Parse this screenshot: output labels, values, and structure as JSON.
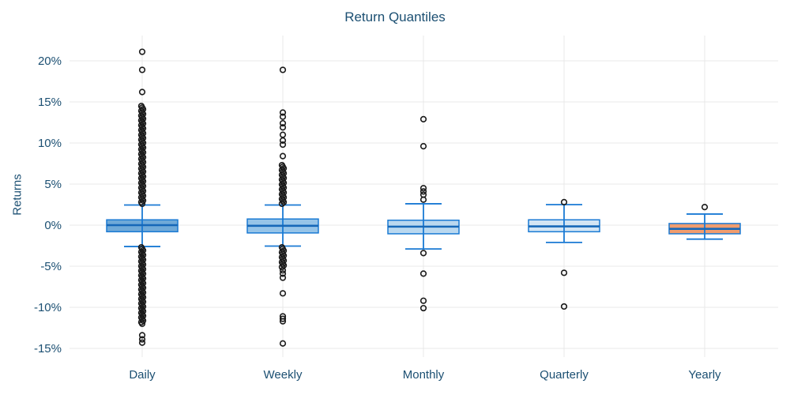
{
  "chart_data": {
    "type": "box",
    "title": "Return Quantiles",
    "ylabel": "Returns",
    "xlabel": "",
    "categories": [
      "Daily",
      "Weekly",
      "Monthly",
      "Quarterly",
      "Yearly"
    ],
    "y_ticks": [
      {
        "label": "20%",
        "value": 20
      },
      {
        "label": "15%",
        "value": 15
      },
      {
        "label": "10%",
        "value": 10
      },
      {
        "label": "5%",
        "value": 5
      },
      {
        "label": "0%",
        "value": 0
      },
      {
        "label": "-5%",
        "value": -5
      },
      {
        "label": "-10%",
        "value": -10
      },
      {
        "label": "-15%",
        "value": -15
      }
    ],
    "ylim": [
      -16.5,
      22.5
    ],
    "grid": "both",
    "legend": "none",
    "series": [
      {
        "name": "Daily",
        "fill": "#6FA9D8",
        "whisker_high": 2.45,
        "q3": 0.65,
        "median": 0.0,
        "q1": -0.8,
        "whisker_low": -2.6,
        "outliers": [
          21.1,
          18.9,
          16.2,
          -13.4,
          -13.9,
          -14.3
        ],
        "outlier_bands": [
          {
            "from": 14.5,
            "to": 2.6,
            "count": 62
          },
          {
            "from": -2.7,
            "to": -12.0,
            "count": 50
          }
        ]
      },
      {
        "name": "Weekly",
        "fill": "#96C4E8",
        "whisker_high": 2.45,
        "q3": 0.75,
        "median": -0.08,
        "q1": -0.95,
        "whisker_low": -2.55,
        "outliers": [
          18.9,
          13.7,
          13.2,
          12.4,
          11.9,
          11.0,
          10.3,
          9.8,
          8.4,
          -5.5,
          -5.9,
          -6.4,
          -8.3,
          -11.1,
          -11.4,
          -11.7,
          -14.4
        ],
        "outlier_bands": [
          {
            "from": 7.3,
            "to": 2.6,
            "count": 25
          },
          {
            "from": -2.7,
            "to": -5.1,
            "count": 13
          }
        ]
      },
      {
        "name": "Monthly",
        "fill": "#BAD8EF",
        "whisker_high": 2.6,
        "q3": 0.6,
        "median": -0.18,
        "q1": -1.05,
        "whisker_low": -2.9,
        "outliers": [
          12.9,
          9.6,
          4.5,
          4.1,
          3.7,
          3.1,
          -3.4,
          -5.9,
          -9.2,
          -10.1
        ],
        "outlier_bands": []
      },
      {
        "name": "Quarterly",
        "fill": "#D3E5F4",
        "whisker_high": 2.5,
        "q3": 0.65,
        "median": -0.15,
        "q1": -0.8,
        "whisker_low": -2.1,
        "outliers": [
          2.8,
          -5.8,
          -9.9
        ],
        "outlier_bands": []
      },
      {
        "name": "Yearly",
        "fill": "#F09C6E",
        "whisker_high": 1.35,
        "q3": 0.2,
        "median": -0.45,
        "q1": -1.05,
        "whisker_low": -1.7,
        "outliers": [
          2.2
        ],
        "outlier_bands": []
      }
    ],
    "colors": {
      "box_border": "#1a7ad4",
      "whisker": "#1a7ad4",
      "median": "#1668b8",
      "outlier_stroke": "#1a1a1a",
      "grid": "#e8e8e8",
      "text": "#1b4f72",
      "background": "#ffffff"
    }
  }
}
